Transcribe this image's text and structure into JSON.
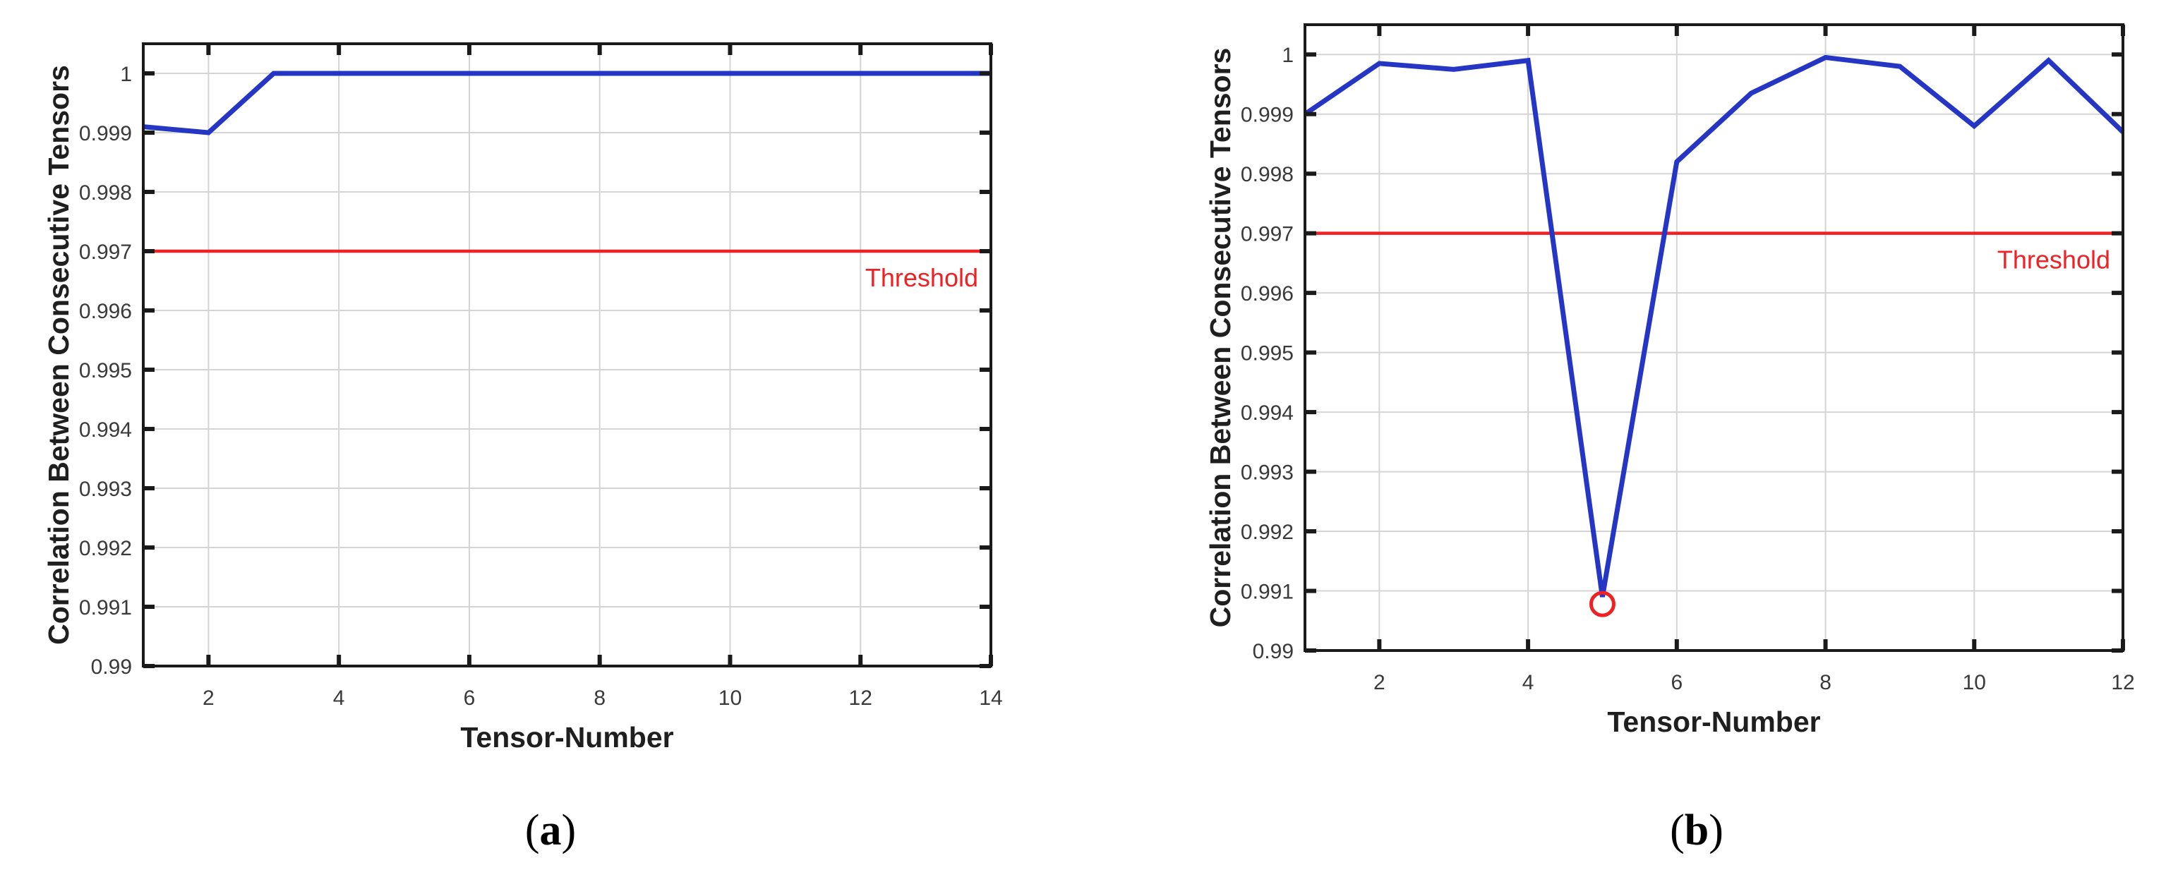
{
  "page": {
    "background": "#ffffff"
  },
  "colors": {
    "series_blue": "#2636c4",
    "threshold_red": "#ee2125",
    "grid": "#d4d4d4",
    "axis": "#1a1a1a",
    "tick_text": "#3a3a3a",
    "label_text": "#1f1f1f"
  },
  "chart_data": [
    {
      "id": "a",
      "type": "line",
      "caption": "(a)",
      "caption_open": "(",
      "caption_letter": "a",
      "caption_close": ")",
      "xlabel": "Tensor-Number",
      "ylabel": "Correlation Between Consecutive Tensors",
      "x": [
        1,
        2,
        3,
        4,
        5,
        6,
        7,
        8,
        9,
        10,
        11,
        12,
        13,
        14
      ],
      "y": [
        0.9991,
        0.999,
        1,
        1,
        1,
        1,
        1,
        1,
        1,
        1,
        1,
        1,
        1,
        1
      ],
      "xticks": [
        2,
        4,
        6,
        8,
        10,
        12,
        14
      ],
      "yticks": [
        0.99,
        0.991,
        0.992,
        0.993,
        0.994,
        0.995,
        0.996,
        0.997,
        0.998,
        0.999,
        1
      ],
      "ytick_labels": [
        "0.99",
        "0.991",
        "0.992",
        "0.993",
        "0.994",
        "0.995",
        "0.996",
        "0.997",
        "0.998",
        "0.999",
        "1"
      ],
      "xlim": [
        1,
        14
      ],
      "ylim": [
        0.99,
        1.0005
      ],
      "grid": true,
      "legend": "none",
      "threshold": {
        "value": 0.997,
        "label": "Threshold"
      }
    },
    {
      "id": "b",
      "type": "line",
      "caption": "(b)",
      "caption_open": "(",
      "caption_letter": "b",
      "caption_close": ")",
      "xlabel": "Tensor-Number",
      "ylabel": "Correlation Between Consecutive Tensors",
      "x": [
        1,
        2,
        3,
        4,
        5,
        6,
        7,
        8,
        9,
        10,
        11,
        12
      ],
      "y": [
        0.999,
        0.99985,
        0.99975,
        0.9999,
        0.9909,
        0.9982,
        0.99935,
        0.99995,
        0.9998,
        0.9988,
        0.9999,
        0.9987
      ],
      "xticks": [
        2,
        4,
        6,
        8,
        10,
        12
      ],
      "yticks": [
        0.99,
        0.991,
        0.992,
        0.993,
        0.994,
        0.995,
        0.996,
        0.997,
        0.998,
        0.999,
        1
      ],
      "ytick_labels": [
        "0.99",
        "0.991",
        "0.992",
        "0.993",
        "0.994",
        "0.995",
        "0.996",
        "0.997",
        "0.998",
        "0.999",
        "1"
      ],
      "xlim": [
        1,
        12
      ],
      "ylim": [
        0.99,
        1.0005
      ],
      "grid": true,
      "legend": "none",
      "threshold": {
        "value": 0.997,
        "label": "Threshold"
      },
      "marker": {
        "x": 5,
        "y": 0.99078,
        "shape": "open-circle",
        "radius": 16
      }
    }
  ]
}
